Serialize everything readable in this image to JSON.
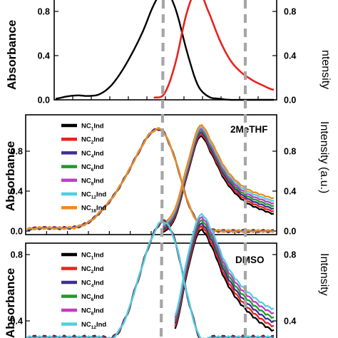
{
  "chart_data": [
    {
      "type": "line",
      "panel_label": "",
      "ylabel_left": "Absorbance",
      "ylabel_right": "ntensity",
      "ylim": [
        0,
        1.0
      ],
      "yticks": [
        "0.0",
        "0.4",
        "0.8"
      ],
      "yticks_right": [
        "0.0",
        "0.4",
        "0.8"
      ],
      "x": [
        0,
        0.05,
        0.1,
        0.15,
        0.2,
        0.25,
        0.3,
        0.35,
        0.4,
        0.45,
        0.5,
        0.55,
        0.6,
        0.65,
        0.7,
        0.75,
        0.8,
        0.85,
        0.9,
        0.95,
        1.0
      ],
      "series": [
        {
          "name": "",
          "color": "#000000",
          "values": [
            0.01,
            0.03,
            0.04,
            0.035,
            0.05,
            0.12,
            0.25,
            0.42,
            0.62,
            0.86,
            1.0,
            0.82,
            0.45,
            0.14,
            0.03,
            0.01,
            0.0,
            0.0,
            0.0,
            0.0,
            0.0
          ]
        },
        {
          "name": "",
          "color": "#e8231f",
          "values": [
            null,
            null,
            null,
            null,
            null,
            null,
            null,
            null,
            null,
            0.02,
            0.06,
            0.34,
            0.78,
            1.0,
            0.8,
            0.55,
            0.36,
            0.25,
            0.18,
            0.13,
            0.09
          ]
        }
      ]
    },
    {
      "type": "line",
      "panel_label": "2MeTHF",
      "ylabel_left": "Absorbance",
      "ylabel_right": "Intensity (a.u.)",
      "ylim": [
        0,
        1.1
      ],
      "yticks": [
        "0.0",
        "0.4",
        "0.8"
      ],
      "yticks_right": [
        "0.0",
        "0.4",
        "0.8"
      ],
      "x": [
        0,
        0.05,
        0.1,
        0.15,
        0.2,
        0.25,
        0.3,
        0.35,
        0.4,
        0.45,
        0.5,
        0.55,
        0.6,
        0.65,
        0.7,
        0.75,
        0.8,
        0.85,
        0.9,
        0.95,
        1.0
      ],
      "legend": [
        {
          "label": "NC",
          "sub": "1",
          "suffix": "Ind",
          "color": "#000000"
        },
        {
          "label": "NC",
          "sub": "2",
          "suffix": "Ind",
          "color": "#e8231f"
        },
        {
          "label": "NC",
          "sub": "4",
          "suffix": "Ind",
          "color": "#3b2f9a"
        },
        {
          "label": "NC",
          "sub": "6",
          "suffix": "Ind",
          "color": "#1f9a2b"
        },
        {
          "label": "NC",
          "sub": "8",
          "suffix": "Ind",
          "color": "#c43bc4"
        },
        {
          "label": "NC",
          "sub": "12",
          "suffix": "Ind",
          "color": "#4fd0e0"
        },
        {
          "label": "NC",
          "sub": "18",
          "suffix": "Ind",
          "color": "#f08a1c"
        }
      ],
      "absorbance": [
        0.02,
        0.03,
        0.03,
        0.03,
        0.04,
        0.09,
        0.2,
        0.35,
        0.55,
        0.78,
        0.98,
        1.0,
        0.72,
        0.3,
        0.06,
        0.01,
        0.0,
        0.0,
        0.0,
        0.0,
        0.0
      ],
      "emission": [
        null,
        null,
        null,
        null,
        null,
        null,
        null,
        null,
        null,
        null,
        null,
        0.03,
        0.18,
        0.62,
        1.0,
        0.82,
        0.58,
        0.43,
        0.34,
        0.29,
        0.25
      ]
    },
    {
      "type": "line",
      "panel_label": "DMSO",
      "ylabel_left": "Absorbance",
      "ylabel_right": "Intensity",
      "ylim": [
        0.3,
        1.1
      ],
      "yticks": [
        "0.4",
        "0.8"
      ],
      "yticks_right": [
        "0.4",
        "0.8"
      ],
      "x": [
        0,
        0.05,
        0.1,
        0.15,
        0.2,
        0.25,
        0.3,
        0.35,
        0.4,
        0.45,
        0.5,
        0.55,
        0.6,
        0.65,
        0.7,
        0.75,
        0.8,
        0.85,
        0.9,
        0.95,
        1.0
      ],
      "legend": [
        {
          "label": "NC",
          "sub": "1",
          "suffix": "Ind",
          "color": "#000000"
        },
        {
          "label": "NC",
          "sub": "2",
          "suffix": "Ind",
          "color": "#e8231f"
        },
        {
          "label": "NC",
          "sub": "4",
          "suffix": "Ind",
          "color": "#3b2f9a"
        },
        {
          "label": "NC",
          "sub": "6",
          "suffix": "Ind",
          "color": "#1f9a2b"
        },
        {
          "label": "NC",
          "sub": "8",
          "suffix": "Ind",
          "color": "#c43bc4"
        },
        {
          "label": "NC",
          "sub": "12",
          "suffix": "Ind",
          "color": "#4fd0e0"
        }
      ],
      "absorbance": [
        0.3,
        0.3,
        0.3,
        0.3,
        0.3,
        0.3,
        0.3,
        0.3,
        0.42,
        0.65,
        0.88,
        1.0,
        0.88,
        0.55,
        0.3,
        0.3,
        0.3,
        0.3,
        0.3,
        0.3,
        0.3
      ],
      "emission": [
        null,
        null,
        null,
        null,
        null,
        null,
        null,
        null,
        null,
        null,
        null,
        null,
        0.4,
        0.75,
        1.0,
        0.9,
        0.72,
        0.6,
        0.52,
        0.46,
        0.42
      ]
    }
  ]
}
